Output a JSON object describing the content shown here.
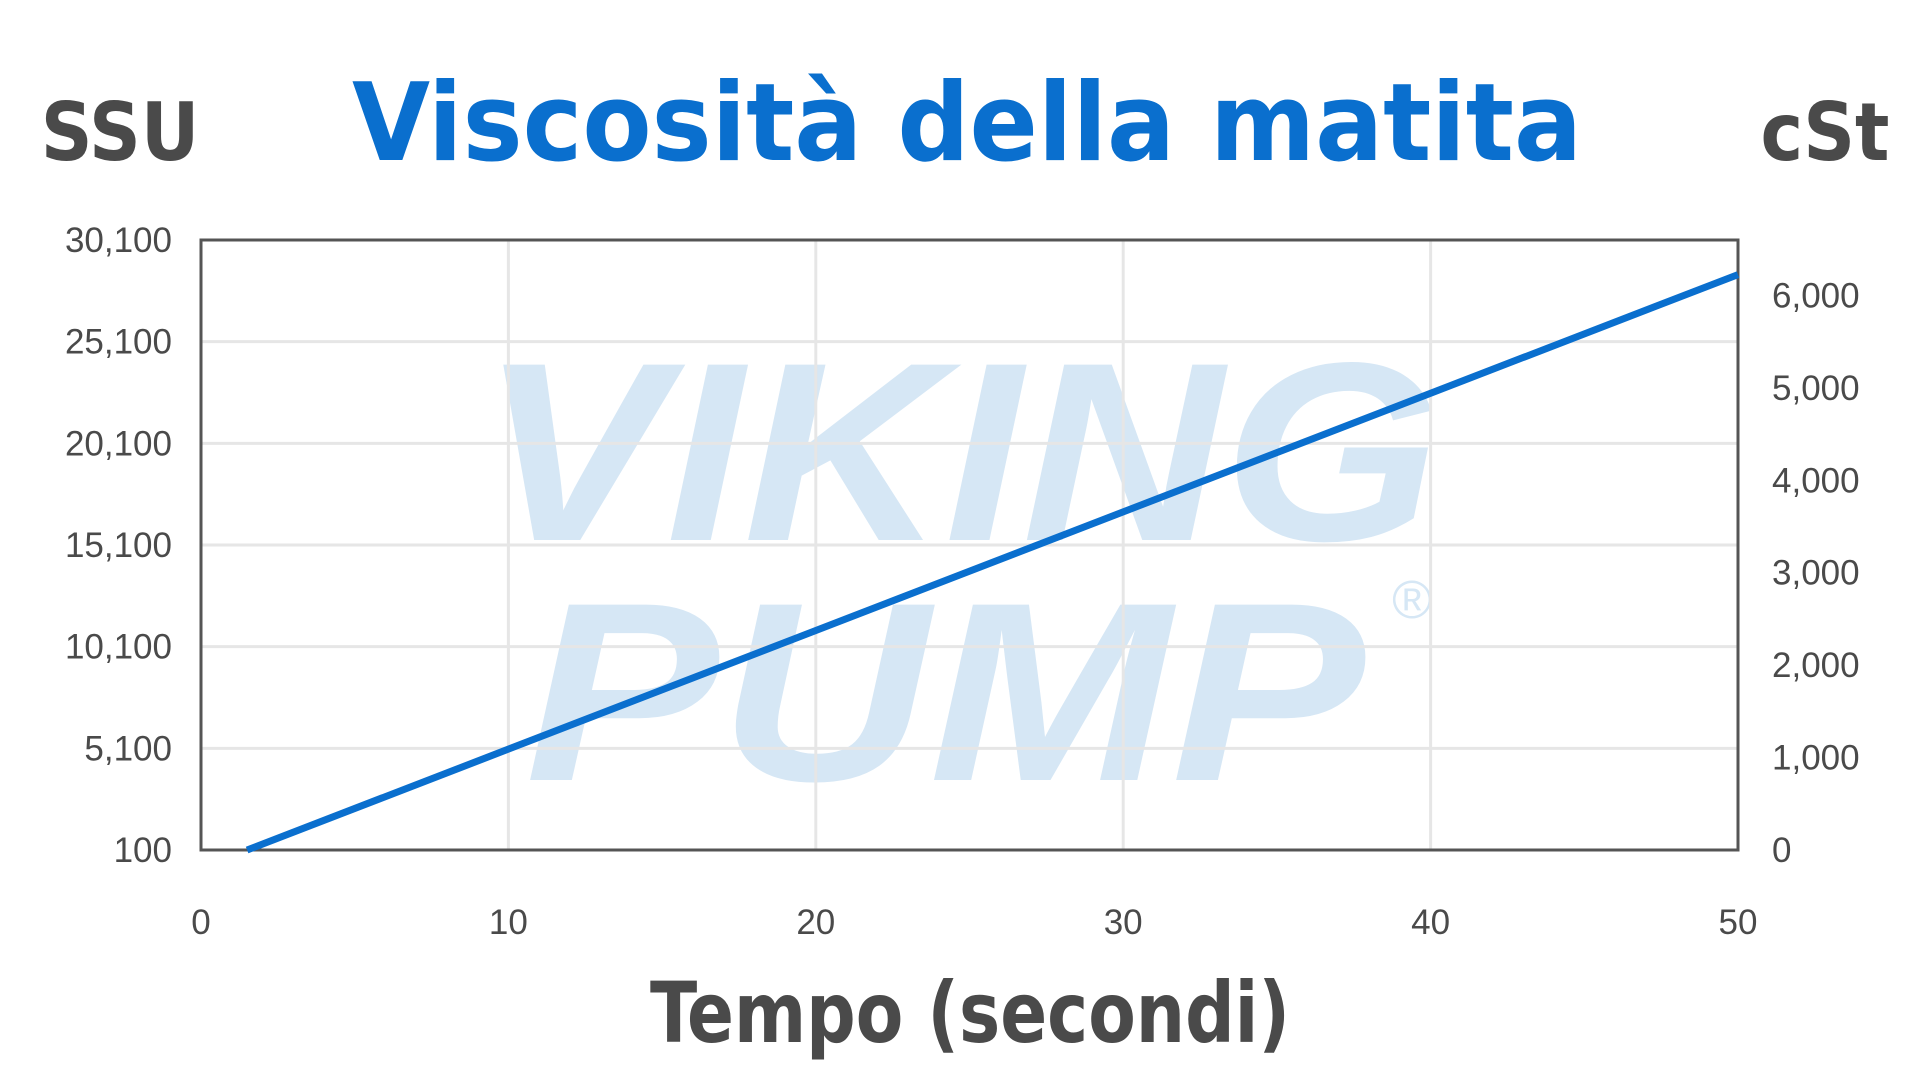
{
  "chart_data": {
    "type": "line",
    "title": "Viscosità della matita",
    "xlabel": "Tempo (secondi)",
    "ylabel_left": "SSU",
    "ylabel_right": "cSt",
    "xlim": [
      0,
      50
    ],
    "ylim_left": [
      100,
      30100
    ],
    "ylim_right": [
      0,
      6600
    ],
    "x_ticks": [
      0,
      10,
      20,
      30,
      40,
      50
    ],
    "x_tick_labels": [
      "0",
      "10",
      "20",
      "30",
      "40",
      "50"
    ],
    "y_left_ticks": [
      100,
      5100,
      10100,
      15100,
      20100,
      25100,
      30100
    ],
    "y_left_tick_labels": [
      "100",
      "5,100",
      "10,100",
      "15,100",
      "20,100",
      "25,100",
      "30,100"
    ],
    "y_right_ticks": [
      0,
      1000,
      2000,
      3000,
      4000,
      5000,
      6000
    ],
    "y_right_tick_labels": [
      "0",
      "1,000",
      "2,000",
      "3,000",
      "4,000",
      "5,000",
      "6,000"
    ],
    "grid": true,
    "series": [
      {
        "x": [
          1.5,
          50
        ],
        "y": [
          100,
          28400
        ]
      }
    ],
    "watermark": {
      "line1": "VIKING",
      "line2": "PUMP",
      "mark": "®"
    },
    "colors": {
      "title": "#0a6fce",
      "line": "#0a6fce",
      "axis_text": "#4a4a4a",
      "grid": "#e6e6e6",
      "frame": "#555555",
      "watermark": "#d6e7f5"
    }
  }
}
